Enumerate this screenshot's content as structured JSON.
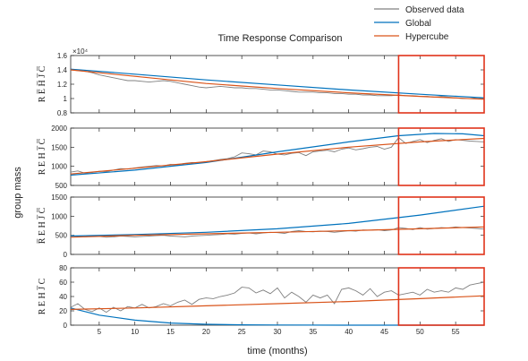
{
  "chart_data": {
    "type": "line",
    "title": "Time Response Comparison",
    "xlabel": "time (months)",
    "ylabel": "group mass",
    "legend": {
      "placement": "top-right",
      "entries": [
        {
          "name": "Observed data",
          "color": "#808080"
        },
        {
          "name": "Global",
          "color": "#0072bd"
        },
        {
          "name": "Hypercube",
          "color": "#d95319"
        }
      ]
    },
    "xlim": [
      1,
      59
    ],
    "xticks": [
      5,
      10,
      15,
      20,
      25,
      30,
      35,
      40,
      45,
      50,
      55
    ],
    "highlight": {
      "x_range": [
        47,
        59
      ],
      "color": "#e0331b"
    },
    "grid": false,
    "panels": [
      {
        "ylabel": "R E̅ H̅ J̅ C̅",
        "exponent": "×10⁴",
        "ylim": [
          0.8,
          1.6
        ],
        "yticks": [
          0.8,
          1,
          1.2,
          1.4,
          1.6
        ],
        "observed": {
          "x0": 1,
          "step": 1,
          "values": [
            1.4,
            1.39,
            1.38,
            1.36,
            1.33,
            1.31,
            1.29,
            1.27,
            1.25,
            1.25,
            1.24,
            1.23,
            1.24,
            1.25,
            1.24,
            1.22,
            1.2,
            1.18,
            1.16,
            1.15,
            1.16,
            1.17,
            1.16,
            1.15,
            1.15,
            1.14,
            1.14,
            1.13,
            1.12,
            1.12,
            1.11,
            1.1,
            1.09,
            1.09,
            1.09,
            1.08,
            1.08,
            1.07,
            1.07,
            1.06,
            1.06,
            1.05,
            1.05,
            1.04,
            1.04,
            1.04,
            1.05,
            1.04,
            1.04,
            1.03,
            1.03,
            1.02,
            1.03,
            1.02,
            1.01,
            1.0,
            1.0,
            1.01,
            1.0
          ]
        },
        "global": {
          "x": [
            1,
            10,
            20,
            30,
            40,
            50,
            59
          ],
          "values": [
            1.41,
            1.34,
            1.26,
            1.19,
            1.12,
            1.06,
            1.01
          ]
        },
        "hypercube": {
          "x": [
            1,
            10,
            20,
            30,
            40,
            50,
            59
          ],
          "values": [
            1.4,
            1.31,
            1.21,
            1.14,
            1.08,
            1.03,
            0.99
          ]
        }
      },
      {
        "ylabel": "R E H J̅ C̅",
        "ylim": [
          500,
          2000
        ],
        "yticks": [
          500,
          1000,
          1500,
          2000
        ],
        "observed": {
          "x0": 1,
          "step": 1,
          "values": [
            850,
            880,
            820,
            840,
            870,
            860,
            900,
            940,
            930,
            960,
            980,
            1000,
            1020,
            1010,
            1050,
            1040,
            1080,
            1100,
            1090,
            1120,
            1150,
            1180,
            1200,
            1250,
            1350,
            1330,
            1300,
            1400,
            1380,
            1320,
            1300,
            1340,
            1360,
            1280,
            1380,
            1400,
            1420,
            1380,
            1450,
            1480,
            1430,
            1460,
            1500,
            1520,
            1450,
            1500,
            1750,
            1600,
            1650,
            1700,
            1620,
            1680,
            1720,
            1650,
            1700,
            1680,
            1660,
            1650,
            1640
          ]
        },
        "global": {
          "x": [
            1,
            10,
            20,
            30,
            40,
            47,
            52,
            56,
            59
          ],
          "values": [
            770,
            900,
            1100,
            1380,
            1640,
            1800,
            1860,
            1850,
            1800
          ]
        },
        "hypercube": {
          "x": [
            1,
            10,
            20,
            30,
            40,
            50,
            59
          ],
          "values": [
            800,
            950,
            1120,
            1320,
            1500,
            1640,
            1730
          ]
        }
      },
      {
        "ylabel": "R̅ E H J̅ C̅",
        "ylim": [
          0,
          1500
        ],
        "yticks": [
          0,
          500,
          1000,
          1500
        ],
        "observed": {
          "x0": 1,
          "step": 1,
          "values": [
            500,
            470,
            460,
            480,
            470,
            450,
            460,
            480,
            470,
            460,
            470,
            480,
            490,
            500,
            480,
            470,
            460,
            480,
            490,
            500,
            510,
            520,
            540,
            530,
            550,
            560,
            540,
            560,
            580,
            570,
            550,
            600,
            620,
            600,
            590,
            610,
            600,
            580,
            600,
            620,
            610,
            640,
            630,
            650,
            620,
            640,
            700,
            680,
            650,
            700,
            660,
            680,
            700,
            690,
            720,
            700,
            690,
            680,
            660
          ]
        },
        "global": {
          "x": [
            1,
            10,
            20,
            30,
            40,
            50,
            59
          ],
          "values": [
            480,
            520,
            580,
            670,
            810,
            1030,
            1260
          ]
        },
        "hypercube": {
          "x": [
            1,
            10,
            20,
            30,
            40,
            50,
            59
          ],
          "values": [
            450,
            500,
            540,
            580,
            620,
            670,
            720
          ]
        }
      },
      {
        "ylabel": "R E H J̅ C",
        "ylim": [
          0,
          80
        ],
        "yticks": [
          0,
          20,
          40,
          60,
          80
        ],
        "observed": {
          "x0": 1,
          "step": 1,
          "values": [
            25,
            30,
            22,
            19,
            24,
            18,
            25,
            20,
            26,
            24,
            29,
            24,
            26,
            30,
            27,
            32,
            35,
            29,
            36,
            38,
            37,
            40,
            42,
            45,
            53,
            52,
            45,
            49,
            44,
            52,
            38,
            46,
            40,
            32,
            42,
            38,
            42,
            30,
            50,
            52,
            48,
            42,
            51,
            40,
            46,
            48,
            42,
            44,
            46,
            42,
            50,
            46,
            48,
            46,
            52,
            50,
            56,
            58,
            60
          ]
        },
        "global": {
          "x": [
            1,
            5,
            10,
            15,
            20,
            25,
            30,
            40,
            50,
            59
          ],
          "values": [
            24,
            14,
            7,
            3,
            1.2,
            0.5,
            0.2,
            0.05,
            0.02,
            0.01
          ]
        },
        "hypercube": {
          "x": [
            1,
            10,
            20,
            30,
            40,
            50,
            59
          ],
          "values": [
            22,
            24,
            27,
            30,
            33,
            37,
            41
          ]
        }
      }
    ]
  }
}
